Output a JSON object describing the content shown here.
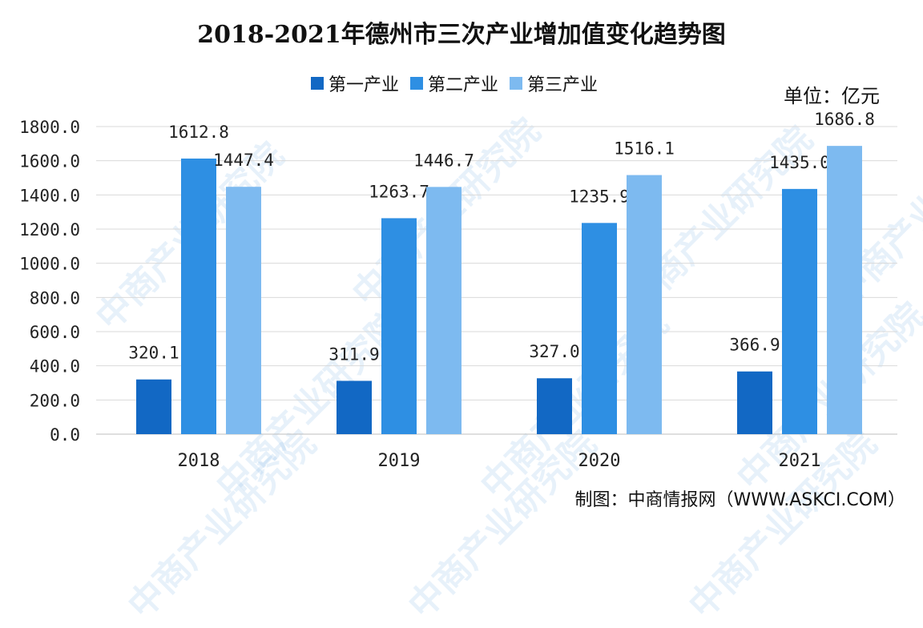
{
  "title": "2018-2021年德州市三次产业增加值变化趋势图",
  "unit": "单位：亿元",
  "credit": "制图：中商情报网（WWW.ASKCI.COM）",
  "watermark_text": "中商产业研究院",
  "chart_data": {
    "type": "bar",
    "title": "2018-2021年德州市三次产业增加值变化趋势图",
    "categories": [
      "2018",
      "2019",
      "2020",
      "2021"
    ],
    "series": [
      {
        "name": "第一产业",
        "color": "#1268c4",
        "values": [
          320.1,
          311.9,
          327.0,
          366.9
        ]
      },
      {
        "name": "第二产业",
        "color": "#2e8fe3",
        "values": [
          1612.8,
          1263.7,
          1235.9,
          1435.0
        ]
      },
      {
        "name": "第三产业",
        "color": "#7dbaf0",
        "values": [
          1447.4,
          1446.7,
          1516.1,
          1686.8
        ]
      }
    ],
    "ylim": [
      0,
      1800
    ],
    "yticks": [
      "0.0",
      "200.0",
      "400.0",
      "600.0",
      "800.0",
      "1000.0",
      "1200.0",
      "1400.0",
      "1600.0",
      "1800.0"
    ],
    "grid": true,
    "legend": "top-center"
  }
}
